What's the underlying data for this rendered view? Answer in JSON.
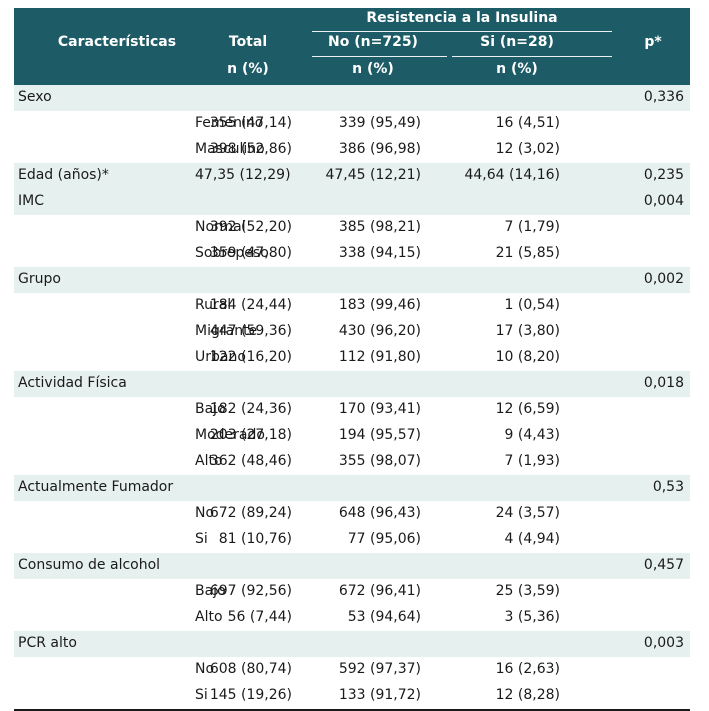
{
  "table": {
    "header": {
      "caracteristicas": "Características",
      "total": "Total",
      "total_unit": "n (%)",
      "group_title": "Resistencia a la Insulina",
      "no": "No (n=725)",
      "no_unit": "n (%)",
      "si": "Si (n=28)",
      "si_unit": "n (%)",
      "p": "p*"
    },
    "rows": [
      {
        "label": "Sexo",
        "sub": "",
        "total": "",
        "no": "",
        "si": "",
        "p": "0,336"
      },
      {
        "label": "",
        "sub": "Femenino",
        "total": "355 (47,14)",
        "no": "339 (95,49)",
        "si": "16 (4,51)",
        "p": ""
      },
      {
        "label": "",
        "sub": "Masculino",
        "total": "398 (52,86)",
        "no": "386 (96,98)",
        "si": "12 (3,02)",
        "p": ""
      },
      {
        "label": "Edad (años)*",
        "sub": "",
        "total": "47,35 (12,29)",
        "no": "47,45 (12,21)",
        "si": "44,64 (14,16)",
        "p": "0,235"
      },
      {
        "label": "IMC",
        "sub": "",
        "total": "",
        "no": "",
        "si": "",
        "p": "0,004"
      },
      {
        "label": "",
        "sub": "Normal",
        "total": "392 (52,20)",
        "no": "385 (98,21)",
        "si": "7 (1,79)",
        "p": ""
      },
      {
        "label": "",
        "sub": "Sobrepeso",
        "total": "359 (47,80)",
        "no": "338 (94,15)",
        "si": "21 (5,85)",
        "p": ""
      },
      {
        "label": "Grupo",
        "sub": "",
        "total": "",
        "no": "",
        "si": "",
        "p": "0,002"
      },
      {
        "label": "",
        "sub": "Rural",
        "total": "184 (24,44)",
        "no": "183 (99,46)",
        "si": "1 (0,54)",
        "p": ""
      },
      {
        "label": "",
        "sub": "Migrante",
        "total": "447 (59,36)",
        "no": "430 (96,20)",
        "si": "17 (3,80)",
        "p": ""
      },
      {
        "label": "",
        "sub": "Urbano",
        "total": "122 (16,20)",
        "no": "112 (91,80)",
        "si": "10 (8,20)",
        "p": ""
      },
      {
        "label": "Actividad Física",
        "sub": "",
        "total": "",
        "no": "",
        "si": "",
        "p": "0,018"
      },
      {
        "label": "",
        "sub": "Bajo",
        "total": "182 (24,36)",
        "no": "170 (93,41)",
        "si": "12 (6,59)",
        "p": ""
      },
      {
        "label": "",
        "sub": "Moderado",
        "total": "203 (27,18)",
        "no": "194 (95,57)",
        "si": "9 (4,43)",
        "p": ""
      },
      {
        "label": "",
        "sub": "Alto",
        "total": "362 (48,46)",
        "no": "355 (98,07)",
        "si": "7 (1,93)",
        "p": ""
      },
      {
        "label": "Actualmente Fumador",
        "sub": "",
        "total": "",
        "no": "",
        "si": "",
        "p": "0,53"
      },
      {
        "label": "",
        "sub": "No",
        "total": "672 (89,24)",
        "no": "648 (96,43)",
        "si": "24 (3,57)",
        "p": ""
      },
      {
        "label": "",
        "sub": "Si",
        "total": "81 (10,76)",
        "no": "77 (95,06)",
        "si": "4 (4,94)",
        "p": ""
      },
      {
        "label": "Consumo de alcohol",
        "sub": "",
        "total": "",
        "no": "",
        "si": "",
        "p": "0,457"
      },
      {
        "label": "",
        "sub": "Bajo",
        "total": "697 (92,56)",
        "no": "672 (96,41)",
        "si": "25 (3,59)",
        "p": ""
      },
      {
        "label": "",
        "sub": "Alto",
        "total": "56 (7,44)",
        "no": "53 (94,64)",
        "si": "3 (5,36)",
        "p": ""
      },
      {
        "label": "PCR alto",
        "sub": "",
        "total": "",
        "no": "",
        "si": "",
        "p": "0,003"
      },
      {
        "label": "",
        "sub": "No",
        "total": "608 (80,74)",
        "no": "592 (97,37)",
        "si": "16 (2,63)",
        "p": ""
      },
      {
        "label": "",
        "sub": "Si",
        "total": "145 (19,26)",
        "no": "133 (91,72)",
        "si": "12 (8,28)",
        "p": ""
      }
    ]
  },
  "colors": {
    "header_bg": "#1d5c66",
    "header_text": "#ffffff",
    "shade_bg": "#e6f0ef"
  }
}
